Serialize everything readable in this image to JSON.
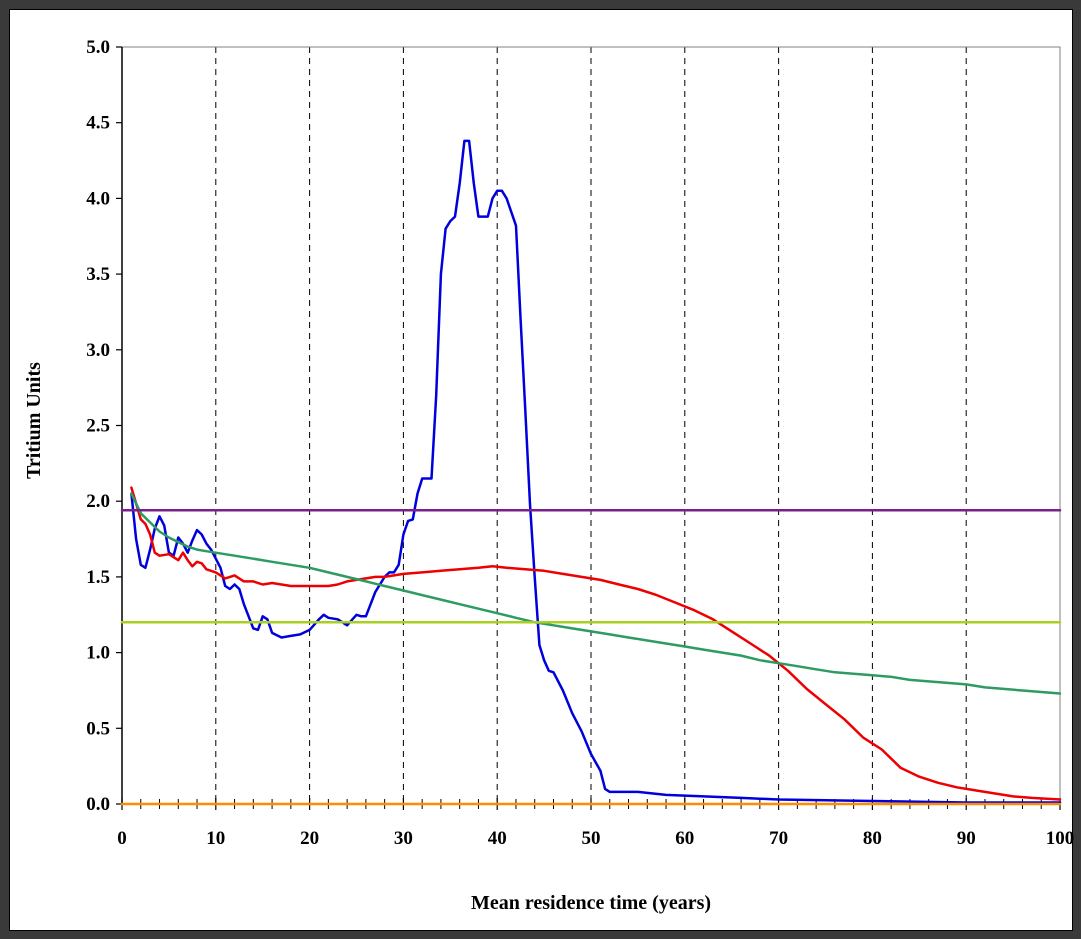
{
  "chart_data": {
    "type": "line",
    "title": "",
    "xlabel": "Mean residence time (years)",
    "ylabel": "Tritium Units",
    "xlim": [
      0,
      100
    ],
    "ylim": [
      0,
      5
    ],
    "x_ticks": [
      "0",
      "10",
      "20",
      "30",
      "40",
      "50",
      "60",
      "70",
      "80",
      "90",
      "100"
    ],
    "y_ticks": [
      "0.0",
      "0.5",
      "1.0",
      "1.5",
      "2.0",
      "2.5",
      "3.0",
      "3.5",
      "4.0",
      "4.5",
      "5.0"
    ],
    "grid": "vertical dashed",
    "legend": "none",
    "series": [
      {
        "color": "#0000dd",
        "points": [
          [
            1,
            2.05
          ],
          [
            1.5,
            1.75
          ],
          [
            2,
            1.58
          ],
          [
            2.5,
            1.56
          ],
          [
            3,
            1.68
          ],
          [
            3.5,
            1.82
          ],
          [
            4,
            1.9
          ],
          [
            4.5,
            1.84
          ],
          [
            5,
            1.66
          ],
          [
            5.5,
            1.64
          ],
          [
            6,
            1.76
          ],
          [
            6.5,
            1.72
          ],
          [
            7,
            1.66
          ],
          [
            7.5,
            1.74
          ],
          [
            8,
            1.81
          ],
          [
            8.5,
            1.78
          ],
          [
            9,
            1.72
          ],
          [
            9.5,
            1.68
          ],
          [
            10,
            1.62
          ],
          [
            10.5,
            1.56
          ],
          [
            11,
            1.44
          ],
          [
            11.5,
            1.42
          ],
          [
            12,
            1.45
          ],
          [
            12.5,
            1.42
          ],
          [
            13,
            1.32
          ],
          [
            13.5,
            1.24
          ],
          [
            14,
            1.16
          ],
          [
            14.5,
            1.15
          ],
          [
            15,
            1.24
          ],
          [
            15.5,
            1.22
          ],
          [
            16,
            1.13
          ],
          [
            17,
            1.1
          ],
          [
            18,
            1.11
          ],
          [
            19,
            1.12
          ],
          [
            20,
            1.15
          ],
          [
            21,
            1.22
          ],
          [
            21.5,
            1.25
          ],
          [
            22,
            1.23
          ],
          [
            23,
            1.22
          ],
          [
            24,
            1.18
          ],
          [
            25,
            1.25
          ],
          [
            25.5,
            1.24
          ],
          [
            26,
            1.24
          ],
          [
            26.5,
            1.32
          ],
          [
            27,
            1.4
          ],
          [
            28,
            1.5
          ],
          [
            28.5,
            1.53
          ],
          [
            29,
            1.53
          ],
          [
            29.5,
            1.58
          ],
          [
            30,
            1.78
          ],
          [
            30.5,
            1.87
          ],
          [
            31,
            1.88
          ],
          [
            31.5,
            2.05
          ],
          [
            32,
            2.15
          ],
          [
            33,
            2.15
          ],
          [
            33.5,
            2.7
          ],
          [
            34,
            3.5
          ],
          [
            34.5,
            3.8
          ],
          [
            35,
            3.85
          ],
          [
            35.5,
            3.88
          ],
          [
            36,
            4.1
          ],
          [
            36.5,
            4.38
          ],
          [
            37,
            4.38
          ],
          [
            37.5,
            4.1
          ],
          [
            38,
            3.88
          ],
          [
            39,
            3.88
          ],
          [
            39.5,
            4.0
          ],
          [
            40,
            4.05
          ],
          [
            40.5,
            4.05
          ],
          [
            41,
            4.0
          ],
          [
            42,
            3.82
          ],
          [
            42.5,
            3.2
          ],
          [
            43,
            2.6
          ],
          [
            43.5,
            1.98
          ],
          [
            44,
            1.5
          ],
          [
            44.5,
            1.05
          ],
          [
            45,
            0.95
          ],
          [
            45.5,
            0.88
          ],
          [
            46,
            0.87
          ],
          [
            47,
            0.75
          ],
          [
            48,
            0.6
          ],
          [
            49,
            0.48
          ],
          [
            50,
            0.33
          ],
          [
            51,
            0.22
          ],
          [
            51.5,
            0.1
          ],
          [
            52,
            0.08
          ],
          [
            53,
            0.08
          ],
          [
            55,
            0.08
          ],
          [
            58,
            0.06
          ],
          [
            62,
            0.05
          ],
          [
            66,
            0.04
          ],
          [
            70,
            0.03
          ],
          [
            75,
            0.025
          ],
          [
            80,
            0.02
          ],
          [
            85,
            0.015
          ],
          [
            90,
            0.01
          ],
          [
            95,
            0.01
          ],
          [
            100,
            0.01
          ]
        ]
      },
      {
        "color": "#ee0000",
        "points": [
          [
            1,
            2.09
          ],
          [
            2,
            1.88
          ],
          [
            2.5,
            1.85
          ],
          [
            3,
            1.78
          ],
          [
            3.5,
            1.66
          ],
          [
            4,
            1.64
          ],
          [
            5,
            1.65
          ],
          [
            6,
            1.61
          ],
          [
            6.5,
            1.66
          ],
          [
            7,
            1.61
          ],
          [
            7.5,
            1.57
          ],
          [
            8,
            1.6
          ],
          [
            8.5,
            1.59
          ],
          [
            9,
            1.55
          ],
          [
            10,
            1.53
          ],
          [
            11,
            1.49
          ],
          [
            12,
            1.51
          ],
          [
            13,
            1.47
          ],
          [
            14,
            1.47
          ],
          [
            15,
            1.45
          ],
          [
            16,
            1.46
          ],
          [
            17,
            1.45
          ],
          [
            18,
            1.44
          ],
          [
            19,
            1.44
          ],
          [
            20,
            1.44
          ],
          [
            21,
            1.44
          ],
          [
            22,
            1.44
          ],
          [
            23,
            1.45
          ],
          [
            24,
            1.47
          ],
          [
            25,
            1.48
          ],
          [
            26,
            1.49
          ],
          [
            27,
            1.5
          ],
          [
            28,
            1.5
          ],
          [
            29,
            1.51
          ],
          [
            30,
            1.52
          ],
          [
            32,
            1.53
          ],
          [
            34,
            1.54
          ],
          [
            36,
            1.55
          ],
          [
            38,
            1.56
          ],
          [
            39.5,
            1.57
          ],
          [
            41,
            1.56
          ],
          [
            43,
            1.55
          ],
          [
            45,
            1.54
          ],
          [
            47,
            1.52
          ],
          [
            49,
            1.5
          ],
          [
            51,
            1.48
          ],
          [
            53,
            1.45
          ],
          [
            55,
            1.42
          ],
          [
            57,
            1.38
          ],
          [
            59,
            1.33
          ],
          [
            61,
            1.28
          ],
          [
            63,
            1.22
          ],
          [
            65,
            1.14
          ],
          [
            67,
            1.06
          ],
          [
            69,
            0.98
          ],
          [
            71,
            0.88
          ],
          [
            73,
            0.76
          ],
          [
            75,
            0.66
          ],
          [
            77,
            0.56
          ],
          [
            79,
            0.44
          ],
          [
            81,
            0.36
          ],
          [
            83,
            0.24
          ],
          [
            85,
            0.18
          ],
          [
            87,
            0.14
          ],
          [
            89,
            0.11
          ],
          [
            91,
            0.09
          ],
          [
            93,
            0.07
          ],
          [
            95,
            0.05
          ],
          [
            97,
            0.04
          ],
          [
            100,
            0.03
          ]
        ]
      },
      {
        "color": "#2e9b62",
        "points": [
          [
            1,
            2.05
          ],
          [
            2,
            1.92
          ],
          [
            3,
            1.86
          ],
          [
            4,
            1.8
          ],
          [
            5,
            1.76
          ],
          [
            6,
            1.73
          ],
          [
            7,
            1.7
          ],
          [
            8,
            1.68
          ],
          [
            9,
            1.67
          ],
          [
            10,
            1.66
          ],
          [
            12,
            1.64
          ],
          [
            14,
            1.62
          ],
          [
            16,
            1.6
          ],
          [
            18,
            1.58
          ],
          [
            20,
            1.56
          ],
          [
            22,
            1.53
          ],
          [
            24,
            1.5
          ],
          [
            26,
            1.47
          ],
          [
            28,
            1.44
          ],
          [
            30,
            1.41
          ],
          [
            32,
            1.38
          ],
          [
            34,
            1.35
          ],
          [
            36,
            1.32
          ],
          [
            38,
            1.29
          ],
          [
            40,
            1.26
          ],
          [
            42,
            1.23
          ],
          [
            44,
            1.2
          ],
          [
            46,
            1.18
          ],
          [
            48,
            1.16
          ],
          [
            50,
            1.14
          ],
          [
            52,
            1.12
          ],
          [
            54,
            1.1
          ],
          [
            56,
            1.08
          ],
          [
            58,
            1.06
          ],
          [
            60,
            1.04
          ],
          [
            62,
            1.02
          ],
          [
            64,
            1.0
          ],
          [
            66,
            0.98
          ],
          [
            68,
            0.95
          ],
          [
            70,
            0.93
          ],
          [
            72,
            0.91
          ],
          [
            74,
            0.89
          ],
          [
            76,
            0.87
          ],
          [
            78,
            0.86
          ],
          [
            80,
            0.85
          ],
          [
            82,
            0.84
          ],
          [
            84,
            0.82
          ],
          [
            86,
            0.81
          ],
          [
            88,
            0.8
          ],
          [
            90,
            0.79
          ],
          [
            92,
            0.77
          ],
          [
            94,
            0.76
          ],
          [
            96,
            0.75
          ],
          [
            98,
            0.74
          ],
          [
            100,
            0.73
          ]
        ]
      },
      {
        "color": "#7a1f8c",
        "points": [
          [
            0,
            1.94
          ],
          [
            100,
            1.94
          ]
        ]
      },
      {
        "color": "#a8d020",
        "points": [
          [
            0,
            1.2
          ],
          [
            100,
            1.2
          ]
        ]
      },
      {
        "color": "#ff8c00",
        "points": [
          [
            0,
            0.0
          ],
          [
            100,
            0.0
          ]
        ]
      }
    ]
  }
}
